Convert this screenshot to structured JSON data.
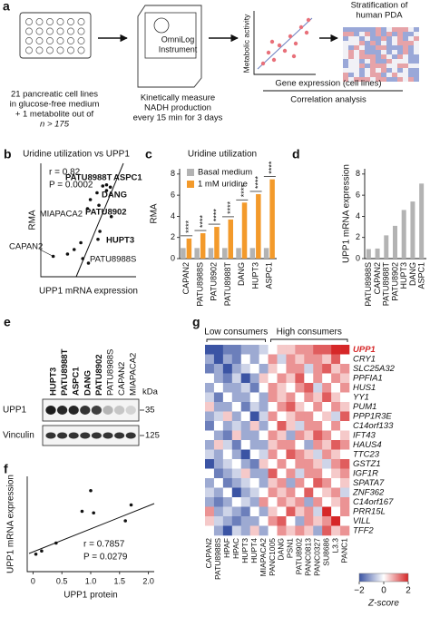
{
  "panel_a": {
    "label": "a",
    "plate_text": [
      "21 pancreatic cell lines",
      "in glucose-free medium",
      "+ 1 metabolite out of",
      "n > 175"
    ],
    "instrument": [
      "OmniLog",
      "Instrument"
    ],
    "measure_text": [
      "Kinetically measure",
      "NADH production",
      "every 15 min for 3 days"
    ],
    "y_axis": "Metabolic activity",
    "x_axis": "Gene expression (cell lines)",
    "analysis": "Correlation analysis",
    "stratification": [
      "Stratification of",
      "human PDA"
    ]
  },
  "chart_data": [
    {
      "type": "scatter",
      "label": "b",
      "title": "Uridine utilization vs UPP1",
      "xlabel": "UPP1 mRNA expression",
      "ylabel": "RMA",
      "annotations": [
        "r = 0.82",
        "P = 0.0002"
      ],
      "names": [
        "CAPAN2",
        "PATU8988S",
        "MIAPACA2",
        "HUPT3",
        "PATU8902",
        "DANG",
        "PATU8988T",
        "ASPC1",
        null,
        null,
        null,
        null,
        null,
        null,
        null,
        null,
        null
      ],
      "x": [
        1.3,
        4.4,
        4.9,
        6.0,
        7.4,
        5.9,
        6.5,
        7.3,
        6.9,
        6.9,
        5.2,
        6.1,
        3.5,
        5.0,
        2.8,
        6.2,
        4.2
      ],
      "y": [
        1.8,
        1.6,
        6.0,
        3.3,
        5.3,
        7.4,
        8.0,
        7.9,
        7.6,
        8.1,
        6.8,
        6.3,
        2.4,
        1.2,
        2.0,
        4.0,
        3.0
      ],
      "xlim": [
        0,
        10
      ],
      "ylim": [
        0,
        10
      ],
      "color": "#111111"
    },
    {
      "type": "grouped_bar",
      "label": "c",
      "title": "Uridine utilization",
      "ylabel": "RMA",
      "categories": [
        "CAPAN2",
        "PATU8988S",
        "PATU8902",
        "PATU8988T",
        "DANG",
        "HUPT3",
        "ASPC1"
      ],
      "series": [
        {
          "name": "Basal medium",
          "color": "#b3b3b3",
          "values": [
            1.0,
            1.0,
            1.0,
            1.0,
            1.0,
            1.0,
            1.0
          ]
        },
        {
          "name": "1 mM uridine",
          "color": "#f39a2b",
          "values": [
            1.9,
            2.4,
            3.0,
            3.7,
            5.3,
            6.1,
            7.5
          ]
        }
      ],
      "annotations": [
        "****",
        "****",
        "****",
        "****",
        "****",
        "****",
        "****"
      ],
      "ylim": [
        0,
        8.5
      ],
      "yticks": [
        0,
        2,
        4,
        6,
        8
      ],
      "legend": "top-left"
    },
    {
      "type": "bar",
      "label": "d",
      "ylabel": "UPP1 mRNA expression",
      "categories": [
        "PATU8988S",
        "CAPAN2",
        "PATU8988T",
        "PATU8902",
        "HUPT3",
        "DANG",
        "ASPC1"
      ],
      "values": [
        0.9,
        0.95,
        2.2,
        3.1,
        4.6,
        5.4,
        7.1
      ],
      "color": "#b3b3b3",
      "ylim": [
        0,
        8.5
      ],
      "yticks": [
        0,
        2,
        4,
        6,
        8
      ]
    },
    {
      "type": "scatter",
      "label": "f",
      "xlabel": "UPP1 protein",
      "ylabel": "UPP1 mRNA expression",
      "annotations": [
        "r = 0.7857",
        "P = 0.0279"
      ],
      "x": [
        0.05,
        0.15,
        0.4,
        0.85,
        1.0,
        1.05,
        1.6,
        1.7
      ],
      "y": [
        3.6,
        3.8,
        4.3,
        6.3,
        7.6,
        6.2,
        5.7,
        6.7
      ],
      "xlim": [
        -0.1,
        2.1
      ],
      "ylim": [
        2.5,
        8.5
      ],
      "xticks": [
        0,
        0.5,
        {
          "value": 1,
          "label": "1.0"
        },
        1.5,
        {
          "value": 2,
          "label": "2.0"
        }
      ],
      "color": "#111111"
    },
    {
      "type": "heatmap",
      "label": "g",
      "groups": [
        "Low consumers",
        "High consumers"
      ],
      "rows": [
        "UPP1",
        "CRY1",
        "SLC25A32",
        "PPFIA1",
        "HUS1",
        "YY1",
        "PUM1",
        "PPP1R3E",
        "C14orf133",
        "IFT43",
        "HAUS4",
        "TTC23",
        "GSTZ1",
        "IGF1R",
        "SPATA7",
        "ZNF362",
        "C14orf167",
        "PRR15L",
        "VILL",
        "TFF2"
      ],
      "columns": [
        "CAPAN2",
        "PATU8988S",
        "HPAF",
        "HPAC",
        "HUPT3",
        "HUPT4",
        "MIAPACA2",
        "PANC1005",
        "DANG",
        "PSN1",
        "PATU8902",
        "PANC0813",
        "PANC0327",
        "SU8686",
        "L3.3",
        "PANC1"
      ],
      "values": [
        [
          -2,
          -2,
          -1.5,
          -1.5,
          -1,
          -1,
          -0.5,
          0,
          0.5,
          0.5,
          1,
          1,
          1.5,
          1.5,
          2,
          2
        ],
        [
          -1,
          -2,
          -1,
          -1.5,
          0,
          -1,
          0,
          1,
          -0.5,
          1,
          0.5,
          1,
          1,
          0.5,
          1.5,
          0
        ],
        [
          -1.5,
          -1,
          -2,
          -1,
          -0.5,
          0,
          -1,
          0.5,
          0,
          1,
          1,
          -0.5,
          1,
          1.5,
          0.5,
          1
        ],
        [
          0,
          -1,
          -1.5,
          -0.5,
          -2,
          -1,
          0.5,
          0,
          1,
          0.5,
          1.5,
          0,
          1,
          0,
          1,
          0.5
        ],
        [
          -1,
          0,
          -1,
          -1,
          -0.5,
          -1.5,
          0,
          1,
          0.5,
          0,
          1,
          1.5,
          -0.5,
          1,
          0,
          1
        ],
        [
          -0.5,
          -1.5,
          0,
          -1,
          -1,
          0,
          -1,
          1,
          0.5,
          1,
          0,
          1,
          0.5,
          1.5,
          0.5,
          0
        ],
        [
          0.5,
          -1,
          -1,
          0,
          -1.5,
          -0.5,
          -1,
          0,
          1,
          1.5,
          0.5,
          0,
          1,
          0,
          1,
          0.5
        ],
        [
          -1,
          -0.5,
          0.5,
          -1,
          0,
          -2,
          -0.5,
          1,
          0,
          0.5,
          1,
          1,
          0,
          0.5,
          -0.5,
          1.5
        ],
        [
          -1.5,
          0,
          -1,
          -0.5,
          -1,
          0.5,
          -1,
          0,
          1.5,
          0.5,
          -0.5,
          1,
          1,
          0,
          1,
          0
        ],
        [
          0,
          -1,
          -1.5,
          0.5,
          -1,
          -1,
          0,
          1,
          0.5,
          -1,
          1,
          0.5,
          1.5,
          1,
          0,
          0.5
        ],
        [
          -1,
          0.5,
          -0.5,
          -1.5,
          0,
          -1,
          -1,
          0.5,
          1,
          1,
          0,
          -1,
          1,
          0.5,
          1.5,
          1
        ],
        [
          -0.5,
          -1,
          0,
          -1,
          -2,
          0,
          -0.5,
          1,
          0,
          1.5,
          1,
          0.5,
          -0.5,
          1,
          0.5,
          0
        ],
        [
          -2,
          -1,
          -0.5,
          0,
          -1,
          -1.5,
          0.5,
          0,
          1,
          0,
          1,
          1,
          0.5,
          -0.5,
          1,
          1.5
        ],
        [
          0,
          -1.5,
          -1,
          -0.5,
          0.5,
          -1,
          -1,
          1.5,
          0,
          1,
          -0.5,
          1,
          1,
          0,
          0.5,
          1
        ],
        [
          -1,
          0,
          -1.5,
          -1,
          -0.5,
          0,
          -1,
          0.5,
          1,
          -1,
          1,
          0,
          1.5,
          1,
          0,
          0.5
        ],
        [
          -0.5,
          -1,
          0,
          -2,
          -1,
          -0.5,
          0,
          1,
          0.5,
          1,
          0,
          1.5,
          0,
          0.5,
          1,
          -0.5
        ],
        [
          -1,
          -1.5,
          -1,
          0,
          -0.5,
          -1,
          1,
          0,
          1,
          0.5,
          1,
          -1,
          1,
          0,
          0.5,
          1
        ],
        [
          1,
          -1,
          -0.5,
          -1,
          -1.5,
          0,
          -1,
          0.5,
          0,
          1.5,
          0.5,
          1,
          -0.5,
          2,
          0,
          1
        ],
        [
          0.5,
          -0.5,
          -1,
          -1.5,
          -1,
          -1,
          0,
          1,
          1.5,
          0,
          -1,
          1,
          0.5,
          1,
          2,
          0
        ],
        [
          0,
          -1,
          -2,
          -0.5,
          -1,
          0.5,
          -1,
          0,
          1,
          0.5,
          1,
          0.5,
          -1,
          1.5,
          0.5,
          1
        ]
      ],
      "zlim": [
        -2,
        2
      ],
      "zticks": [
        {
          "value": -2,
          "label": "−2"
        },
        0,
        2
      ],
      "zlabel": "Z-score",
      "colormap": [
        "#3b54a4",
        "#ffffff",
        "#d62728"
      ],
      "highlight_color": "#d62728"
    }
  ],
  "panel_e": {
    "label": "e",
    "lanes": [
      "HUPT3",
      "PATU8988T",
      "ASPC1",
      "DANG",
      "PATU8902",
      "PATU8988S",
      "CAPAN2",
      "MIAPACA2"
    ],
    "rows": [
      "UPP1",
      "Vinculin"
    ],
    "kda": "kDa",
    "markers": [
      35,
      125
    ]
  }
}
